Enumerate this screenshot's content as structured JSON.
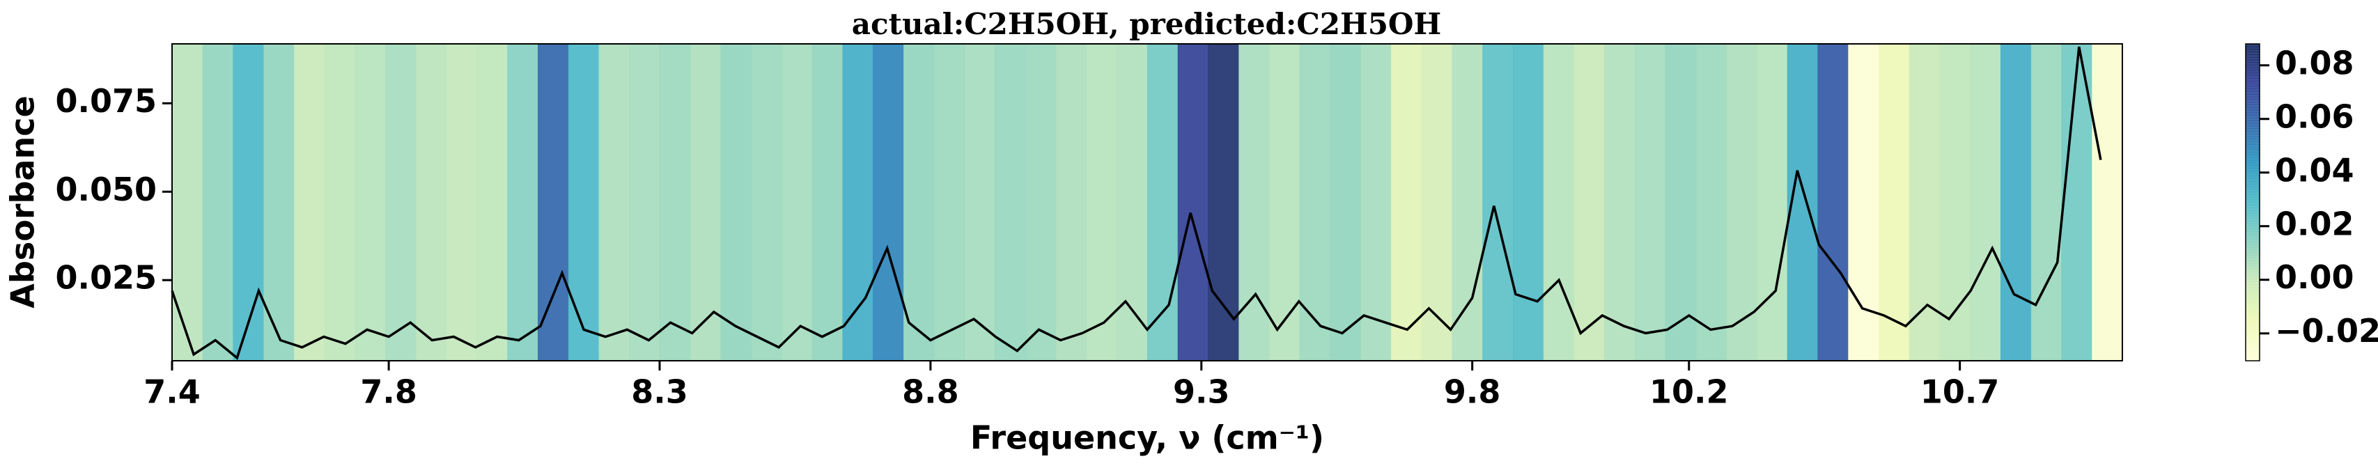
{
  "chart_data": {
    "type": "line",
    "title": "actual:C2H5OH, predicted:C2H5OH",
    "xlabel": "Frequency, ν (cm⁻¹)",
    "ylabel": "Absorbance",
    "x": [
      7.4,
      7.44,
      7.48,
      7.52,
      7.56,
      7.6,
      7.64,
      7.68,
      7.72,
      7.76,
      7.8,
      7.84,
      7.88,
      7.92,
      7.96,
      8.0,
      8.04,
      8.08,
      8.12,
      8.16,
      8.2,
      8.24,
      8.28,
      8.32,
      8.36,
      8.4,
      8.44,
      8.48,
      8.52,
      8.56,
      8.6,
      8.64,
      8.68,
      8.72,
      8.76,
      8.8,
      8.84,
      8.88,
      8.92,
      8.96,
      9.0,
      9.04,
      9.08,
      9.12,
      9.16,
      9.2,
      9.24,
      9.28,
      9.32,
      9.36,
      9.4,
      9.44,
      9.48,
      9.52,
      9.56,
      9.6,
      9.64,
      9.68,
      9.72,
      9.76,
      9.8,
      9.84,
      9.88,
      9.92,
      9.96,
      10.0,
      10.04,
      10.08,
      10.12,
      10.16,
      10.2,
      10.24,
      10.28,
      10.32,
      10.36,
      10.4,
      10.44,
      10.48,
      10.52,
      10.56,
      10.6,
      10.64,
      10.68,
      10.72,
      10.76,
      10.8,
      10.84,
      10.88,
      10.92,
      10.96
    ],
    "series": [
      {
        "color": "#000000",
        "values": [
          0.022,
          0.004,
          0.008,
          0.003,
          0.022,
          0.008,
          0.006,
          0.009,
          0.007,
          0.011,
          0.009,
          0.013,
          0.008,
          0.009,
          0.006,
          0.009,
          0.008,
          0.012,
          0.027,
          0.011,
          0.009,
          0.011,
          0.008,
          0.013,
          0.01,
          0.016,
          0.012,
          0.009,
          0.006,
          0.012,
          0.009,
          0.012,
          0.02,
          0.034,
          0.013,
          0.008,
          0.011,
          0.014,
          0.009,
          0.005,
          0.011,
          0.008,
          0.01,
          0.013,
          0.019,
          0.011,
          0.018,
          0.044,
          0.022,
          0.014,
          0.021,
          0.011,
          0.019,
          0.012,
          0.01,
          0.015,
          0.013,
          0.011,
          0.017,
          0.011,
          0.02,
          0.046,
          0.021,
          0.019,
          0.025,
          0.01,
          0.015,
          0.012,
          0.01,
          0.011,
          0.015,
          0.011,
          0.012,
          0.016,
          0.022,
          0.056,
          0.035,
          0.027,
          0.017,
          0.015,
          0.012,
          0.018,
          0.014,
          0.022,
          0.034,
          0.021,
          0.018,
          0.03,
          0.091,
          0.059
        ]
      }
    ],
    "xlim": [
      7.4,
      11.0
    ],
    "xticks": [
      7.4,
      7.8,
      8.3,
      8.8,
      9.3,
      9.8,
      10.2,
      10.7
    ],
    "ylim": [
      0.0022,
      0.0918
    ],
    "yticks": [
      0.025,
      {
        "value": 0.05,
        "label": "0.050"
      },
      0.075
    ],
    "heatmap": {
      "values": [
        0.003,
        0.012,
        0.03,
        0.012,
        0.0,
        0.002,
        0.004,
        0.008,
        0.003,
        0.001,
        0.002,
        0.015,
        0.06,
        0.03,
        0.006,
        0.008,
        0.01,
        0.006,
        0.012,
        0.01,
        0.008,
        0.012,
        0.035,
        0.05,
        0.012,
        0.01,
        0.008,
        0.011,
        0.01,
        0.006,
        0.004,
        0.005,
        0.02,
        0.075,
        0.085,
        0.007,
        0.004,
        0.01,
        0.012,
        0.008,
        -0.01,
        -0.005,
        0.005,
        0.025,
        0.028,
        0.004,
        0.0,
        0.005,
        0.008,
        0.012,
        0.01,
        0.006,
        0.004,
        0.035,
        0.065,
        -0.028,
        -0.015,
        0.0,
        0.002,
        0.004,
        0.035,
        0.01,
        0.02,
        -0.025
      ],
      "clim": [
        -0.0302,
        0.088
      ],
      "ticks": [
        {
          "value": -0.02,
          "label": "−0.02"
        },
        {
          "value": 0,
          "label": "0.00"
        },
        0.02,
        0.04,
        0.06,
        0.08
      ],
      "colormap": [
        "#ffffd9",
        "#edf8b1",
        "#c7e9b4",
        "#7fcdbb",
        "#41b6c4",
        "#1d91c0",
        "#225ea8",
        "#253494",
        "#081d58"
      ]
    }
  }
}
